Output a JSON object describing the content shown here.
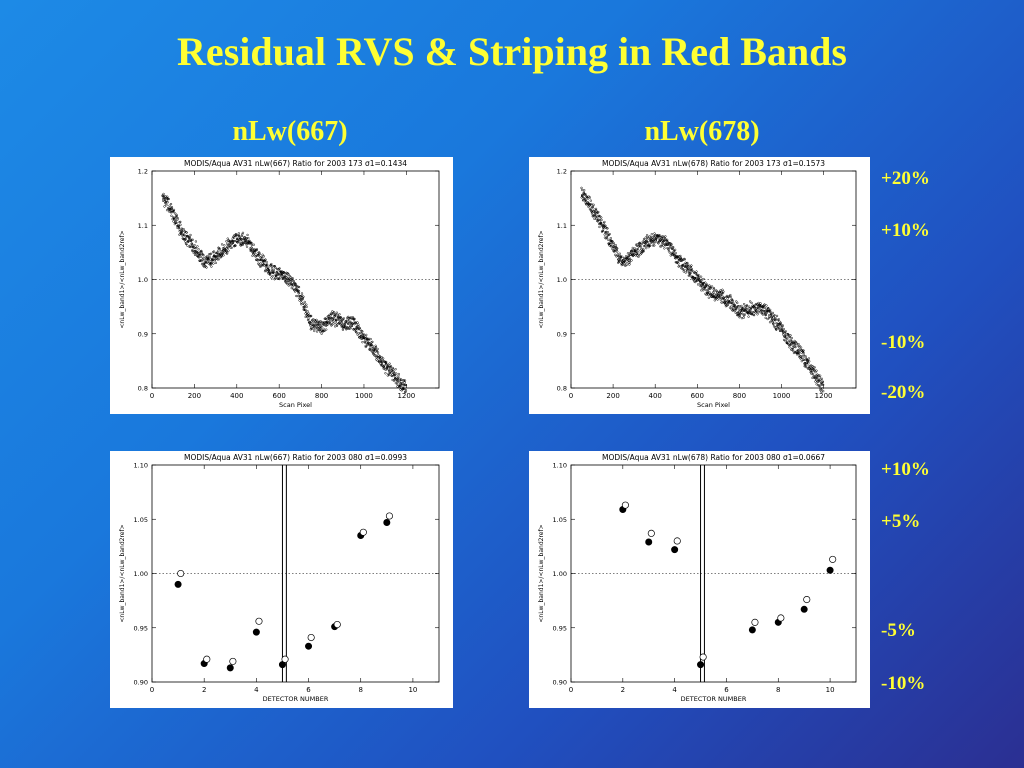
{
  "slide": {
    "title": "Residual RVS & Striping in Red Bands",
    "columns": [
      "nLw(667)",
      "nLw(678)"
    ],
    "labels_top": [
      "+20%",
      "+10%",
      "-10%",
      "-20%"
    ],
    "labels_bottom": [
      "+10%",
      "+5%",
      "-5%",
      "-10%"
    ]
  },
  "chart_data": [
    {
      "type": "scatter",
      "title": "MODIS/Aqua AV31 nLw(667) Ratio for 2003 173 σ1=0.1434",
      "xlabel": "Scan Pixel",
      "ylabel": "<nLw_band1>/<nLw_band2ref>",
      "xlim": [
        0,
        1354
      ],
      "ylim": [
        0.8,
        1.2
      ],
      "xticks": [
        0,
        200,
        400,
        600,
        800,
        1000,
        1200
      ],
      "xticklabels": [
        "0",
        "200",
        "400",
        "600",
        "800",
        "1000",
        "1200"
      ],
      "yticks": [
        0.8,
        0.9,
        1.0,
        1.1,
        1.2
      ],
      "yticklabels": [
        "0.8",
        "0.9",
        "1.0",
        "1.1",
        "1.2"
      ],
      "reference_line": 1.0,
      "series": [
        {
          "x": [
            50,
            75,
            100,
            150,
            200,
            250,
            300,
            350,
            400,
            450,
            500,
            550,
            600,
            650,
            700,
            750,
            800,
            850,
            900,
            950,
            1000,
            1050,
            1100,
            1150,
            1200
          ],
          "y": [
            1.15,
            1.14,
            1.12,
            1.08,
            1.06,
            1.03,
            1.04,
            1.06,
            1.075,
            1.07,
            1.04,
            1.02,
            1.01,
            1.0,
            0.97,
            0.92,
            0.91,
            0.93,
            0.92,
            0.92,
            0.89,
            0.87,
            0.84,
            0.82,
            0.8
          ]
        }
      ]
    },
    {
      "type": "scatter",
      "title": "MODIS/Aqua AV31 nLw(678) Ratio for 2003 173 σ1=0.1573",
      "xlabel": "Scan Pixel",
      "ylabel": "<nLw_band1>/<nLw_band2ref>",
      "xlim": [
        0,
        1354
      ],
      "ylim": [
        0.8,
        1.2
      ],
      "xticks": [
        0,
        200,
        400,
        600,
        800,
        1000,
        1200
      ],
      "xticklabels": [
        "0",
        "200",
        "400",
        "600",
        "800",
        "1000",
        "1200"
      ],
      "yticks": [
        0.8,
        0.9,
        1.0,
        1.1,
        1.2
      ],
      "yticklabels": [
        "0.8",
        "0.9",
        "1.0",
        "1.1",
        "1.2"
      ],
      "reference_line": 1.0,
      "series": [
        {
          "x": [
            50,
            75,
            100,
            150,
            200,
            250,
            300,
            350,
            400,
            450,
            500,
            550,
            600,
            650,
            700,
            750,
            800,
            850,
            900,
            950,
            1000,
            1050,
            1100,
            1150,
            1200
          ],
          "y": [
            1.16,
            1.15,
            1.13,
            1.1,
            1.06,
            1.03,
            1.05,
            1.065,
            1.075,
            1.07,
            1.04,
            1.02,
            1.0,
            0.98,
            0.97,
            0.96,
            0.94,
            0.945,
            0.95,
            0.93,
            0.91,
            0.88,
            0.86,
            0.83,
            0.8
          ]
        }
      ]
    },
    {
      "type": "scatter",
      "title": "MODIS/Aqua AV31 nLw(667) Ratio for 2003 080 σ1=0.0993",
      "xlabel": "DETECTOR NUMBER",
      "ylabel": "<nLw_band1>/<nLw_band2ref>",
      "xlim": [
        0,
        11
      ],
      "ylim": [
        0.9,
        1.1
      ],
      "xticks": [
        0,
        2,
        4,
        6,
        8,
        10
      ],
      "xticklabels": [
        "0",
        "2",
        "4",
        "6",
        "8",
        "10"
      ],
      "yticks": [
        0.9,
        0.95,
        1.0,
        1.05,
        1.1
      ],
      "yticklabels": [
        "0.90",
        "0.95",
        "1.00",
        "1.05",
        "1.10"
      ],
      "reference_line": 1.0,
      "vertical_lines": [
        5.0,
        5.15
      ],
      "series": [
        {
          "marker": "filled",
          "x": [
            1,
            2,
            3,
            4,
            5,
            6,
            7,
            8,
            9
          ],
          "y": [
            0.99,
            0.917,
            0.913,
            0.946,
            0.916,
            0.933,
            0.951,
            1.035,
            1.047
          ]
        },
        {
          "marker": "open",
          "x": [
            1.1,
            2.1,
            3.1,
            4.1,
            5.1,
            6.1,
            7.1,
            8.1,
            9.1
          ],
          "y": [
            1.0,
            0.921,
            0.919,
            0.956,
            0.921,
            0.941,
            0.953,
            1.038,
            1.053
          ]
        }
      ]
    },
    {
      "type": "scatter",
      "title": "MODIS/Aqua AV31 nLw(678) Ratio for 2003 080 σ1=0.0667",
      "xlabel": "DETECTOR NUMBER",
      "ylabel": "<nLw_band1>/<nLw_band2ref>",
      "xlim": [
        0,
        11
      ],
      "ylim": [
        0.9,
        1.1
      ],
      "xticks": [
        0,
        2,
        4,
        6,
        8,
        10
      ],
      "xticklabels": [
        "0",
        "2",
        "4",
        "6",
        "8",
        "10"
      ],
      "yticks": [
        0.9,
        0.95,
        1.0,
        1.05,
        1.1
      ],
      "yticklabels": [
        "0.90",
        "0.95",
        "1.00",
        "1.05",
        "1.10"
      ],
      "reference_line": 1.0,
      "vertical_lines": [
        5.0,
        5.15
      ],
      "series": [
        {
          "marker": "filled",
          "x": [
            2,
            3,
            4,
            5,
            7,
            8,
            9,
            10
          ],
          "y": [
            1.059,
            1.029,
            1.022,
            0.916,
            0.948,
            0.955,
            0.967,
            1.003
          ]
        },
        {
          "marker": "open",
          "x": [
            2.1,
            3.1,
            4.1,
            5.1,
            7.1,
            8.1,
            9.1,
            10.1
          ],
          "y": [
            1.063,
            1.037,
            1.03,
            0.923,
            0.955,
            0.959,
            0.976,
            1.013
          ]
        }
      ]
    }
  ]
}
